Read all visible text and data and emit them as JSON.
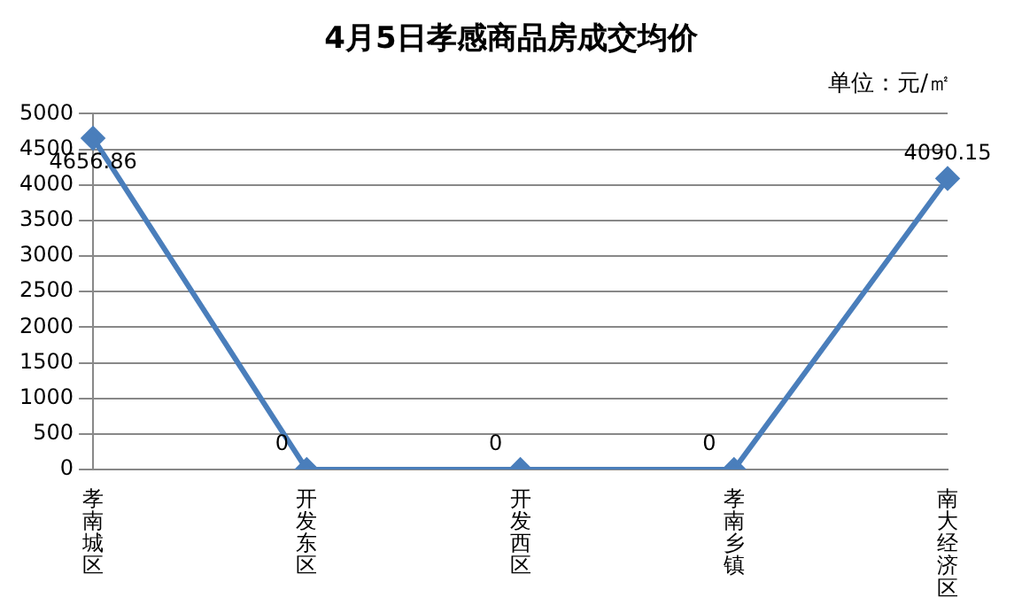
{
  "chart_data": {
    "type": "line",
    "title": "4月5日孝感商品房成交均价",
    "annotations": [
      "单位：元/㎡"
    ],
    "categories": [
      "孝南城区",
      "开发东区",
      "开发西区",
      "孝南乡镇",
      "南大经济区"
    ],
    "series": [
      {
        "color": "#4a7ebb",
        "values": [
          4656.86,
          0,
          0,
          0,
          4090.15
        ]
      }
    ],
    "ylim": [
      0,
      5000
    ],
    "yticks": [
      0,
      500,
      1000,
      1500,
      2000,
      2500,
      3000,
      3500,
      4000,
      4500,
      5000
    ],
    "grid": "y",
    "legend": false,
    "marker": "diamond",
    "line_style": "solid",
    "data_labels": true
  }
}
